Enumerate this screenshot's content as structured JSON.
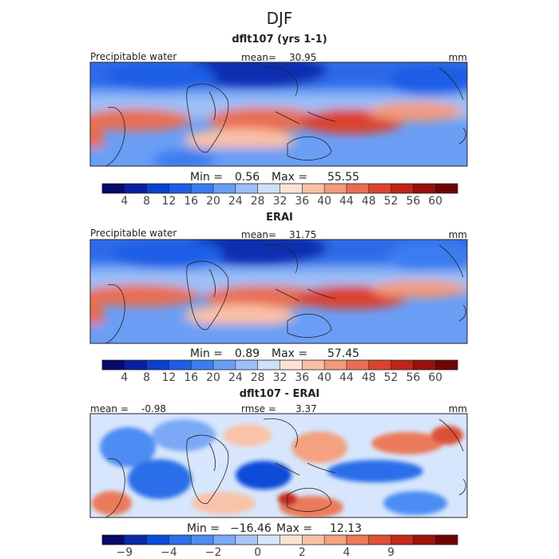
{
  "figure_title": "DJF",
  "chart_data": [
    {
      "type": "heatmap",
      "title": "dflt107 (yrs 1-1)",
      "variable": "Precipitable water",
      "mean_label": "mean=",
      "mean": "30.95",
      "units": "mm",
      "min_label": "Min =",
      "min": "0.56",
      "max_label": "Max =",
      "max": "55.55",
      "colorbar_ticks": [
        "4",
        "8",
        "12",
        "16",
        "20",
        "24",
        "28",
        "32",
        "36",
        "40",
        "44",
        "48",
        "52",
        "56",
        "60"
      ],
      "colorbar_colors": [
        "#08096a",
        "#0a1fa0",
        "#0b3fcf",
        "#1d5ee6",
        "#3a7df0",
        "#6a9ef5",
        "#9dbff8",
        "#cfe0fb",
        "#fde3d4",
        "#f9c0a6",
        "#f29a7c",
        "#e86e53",
        "#db432f",
        "#c02318",
        "#980f0b",
        "#6e0404"
      ]
    },
    {
      "type": "heatmap",
      "title": "ERAI",
      "variable": "Precipitable water",
      "mean_label": "mean=",
      "mean": "31.75",
      "units": "mm",
      "min_label": "Min =",
      "min": "0.89",
      "max_label": "Max =",
      "max": "57.45",
      "colorbar_ticks": [
        "4",
        "8",
        "12",
        "16",
        "20",
        "24",
        "28",
        "32",
        "36",
        "40",
        "44",
        "48",
        "52",
        "56",
        "60"
      ],
      "colorbar_colors": [
        "#08096a",
        "#0a1fa0",
        "#0b3fcf",
        "#1d5ee6",
        "#3a7df0",
        "#6a9ef5",
        "#9dbff8",
        "#cfe0fb",
        "#fde3d4",
        "#f9c0a6",
        "#f29a7c",
        "#e86e53",
        "#db432f",
        "#c02318",
        "#980f0b",
        "#6e0404"
      ]
    },
    {
      "type": "heatmap",
      "title": "dflt107 - ERAI",
      "mean_label": "mean =",
      "mean": "-0.98",
      "rmse_label": "rmse =",
      "rmse": "3.37",
      "units": "mm",
      "min_label": "Min =",
      "min": "−16.46",
      "max_label": "Max =",
      "max": "12.13",
      "colorbar_ticks": [
        "−9",
        "−4",
        "−2",
        "0",
        "2",
        "4",
        "9"
      ],
      "colorbar_colors": [
        "#08096a",
        "#0a2aa8",
        "#0b4bd8",
        "#2a6ee9",
        "#4e8cf2",
        "#7ba9f6",
        "#a9c8f9",
        "#d7e6fc",
        "#fde3d4",
        "#f9c3a9",
        "#f3a181",
        "#ea7a5a",
        "#dd5034",
        "#c52a1a",
        "#a0120c",
        "#700404"
      ],
      "colorbar_tick_slots": [
        1,
        3,
        5,
        7,
        9,
        11,
        13
      ]
    }
  ]
}
